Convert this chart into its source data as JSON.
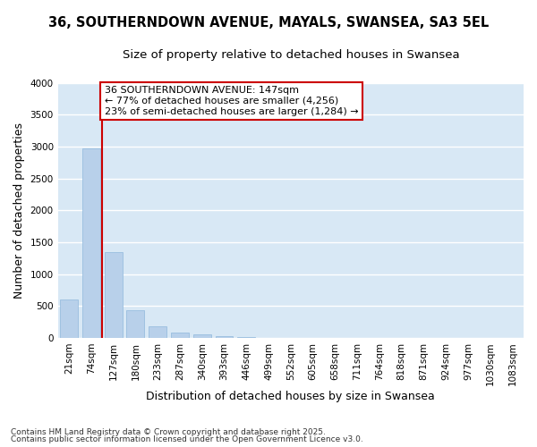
{
  "title": "36, SOUTHERNDOWN AVENUE, MAYALS, SWANSEA, SA3 5EL",
  "subtitle": "Size of property relative to detached houses in Swansea",
  "xlabel": "Distribution of detached houses by size in Swansea",
  "ylabel": "Number of detached properties",
  "categories": [
    "21sqm",
    "74sqm",
    "127sqm",
    "180sqm",
    "233sqm",
    "287sqm",
    "340sqm",
    "393sqm",
    "446sqm",
    "499sqm",
    "552sqm",
    "605sqm",
    "658sqm",
    "711sqm",
    "764sqm",
    "818sqm",
    "871sqm",
    "924sqm",
    "977sqm",
    "1030sqm",
    "1083sqm"
  ],
  "values": [
    600,
    2975,
    1340,
    430,
    175,
    80,
    50,
    30,
    10,
    5,
    3,
    2,
    1,
    1,
    0,
    0,
    0,
    0,
    0,
    0,
    0
  ],
  "bar_color": "#b8d0ea",
  "bar_edge_color": "#90b8dc",
  "plot_bg_color": "#d8e8f5",
  "fig_bg_color": "#ffffff",
  "grid_color": "#ffffff",
  "vline_x": 1.5,
  "vline_color": "#cc0000",
  "annotation_title": "36 SOUTHERNDOWN AVENUE: 147sqm",
  "annotation_line1": "← 77% of detached houses are smaller (4,256)",
  "annotation_line2": "23% of semi-detached houses are larger (1,284) →",
  "annotation_box_edge_color": "#cc0000",
  "annotation_text_color": "#000000",
  "annotation_bg": "#ffffff",
  "ylim": [
    0,
    4000
  ],
  "yticks": [
    0,
    500,
    1000,
    1500,
    2000,
    2500,
    3000,
    3500,
    4000
  ],
  "footnote1": "Contains HM Land Registry data © Crown copyright and database right 2025.",
  "footnote2": "Contains public sector information licensed under the Open Government Licence v3.0.",
  "title_fontsize": 10.5,
  "subtitle_fontsize": 9.5,
  "tick_fontsize": 7.5,
  "label_fontsize": 9,
  "annotation_fontsize": 8,
  "footnote_fontsize": 6.5
}
